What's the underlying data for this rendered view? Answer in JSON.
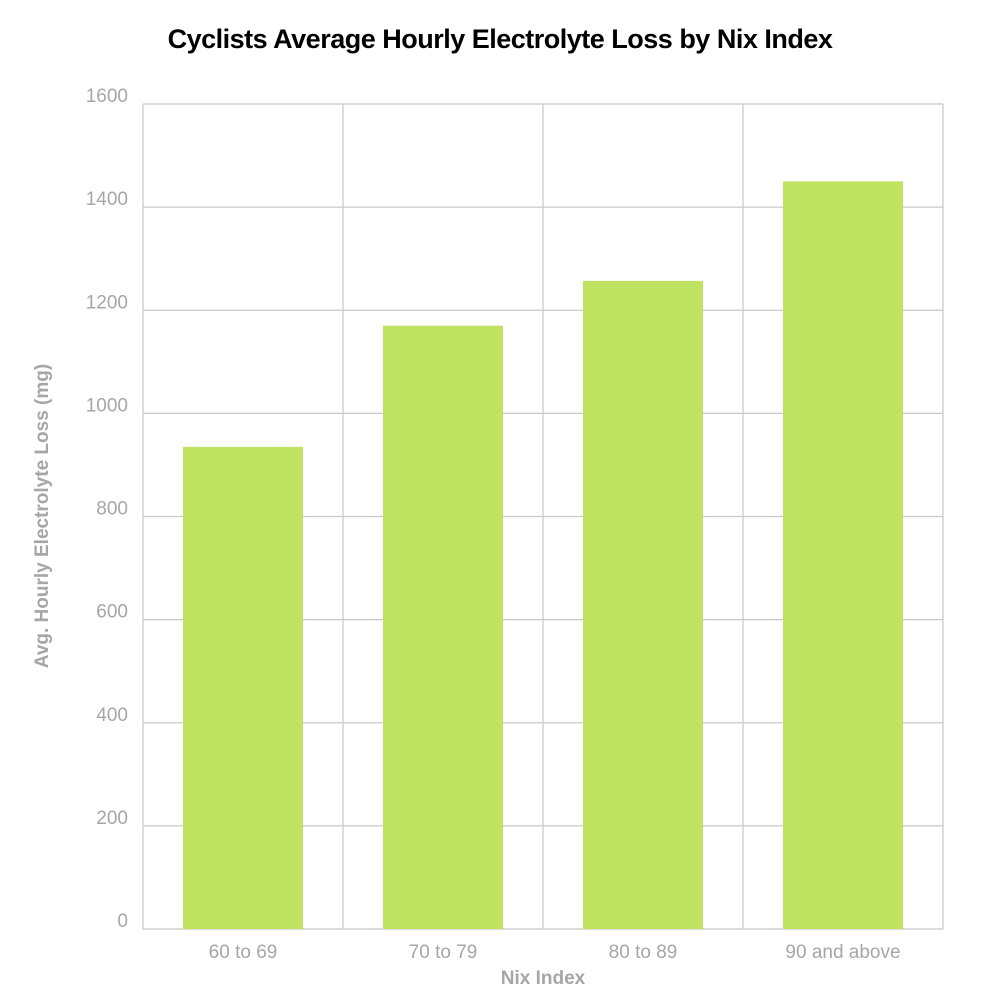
{
  "chart_data": {
    "type": "bar",
    "title": "Cyclists Average Hourly Electrolyte Loss by Nix Index",
    "xlabel": "Nix Index",
    "ylabel": "Avg. Hourly Electrolyte Loss (mg)",
    "categories": [
      "60 to 69",
      "70 to 79",
      "80 to 89",
      "90 and above"
    ],
    "values": [
      935,
      1170,
      1257,
      1450
    ],
    "ylim": [
      0,
      1600
    ],
    "yticks": [
      0,
      200,
      400,
      600,
      800,
      1000,
      1200,
      1400,
      1600
    ],
    "grid": true,
    "bar_color": "#c0e362",
    "grid_color": "#c8c8c8"
  }
}
